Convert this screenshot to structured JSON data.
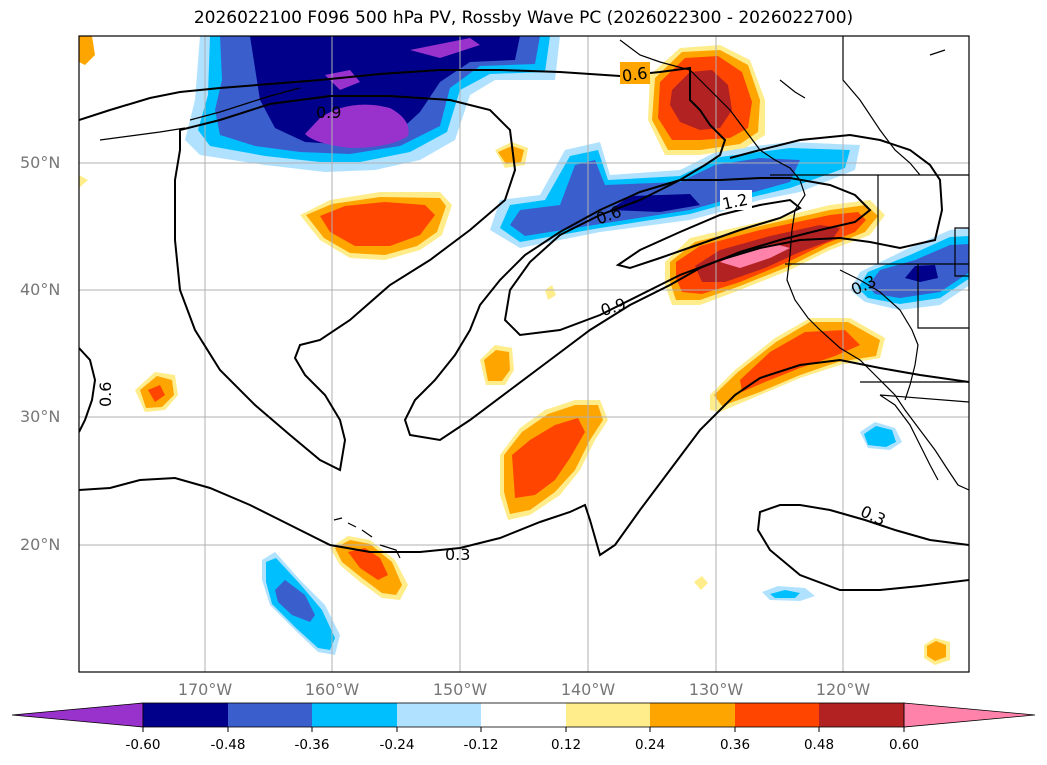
{
  "title": "2026022100 F096 500 hPa PV, Rossby Wave PC (2026022300 - 2026022700)",
  "lat_labels": [
    "50°N",
    "40°N",
    "30°N",
    "20°N"
  ],
  "lon_labels": [
    "170°W",
    "160°W",
    "150°W",
    "140°W",
    "130°W",
    "120°W"
  ],
  "contour_labels": [
    "0.6",
    "0.9",
    "1.2",
    "0.3",
    "0.6",
    "0.3",
    "0.3",
    "0.6",
    "0.9"
  ],
  "colorbar": {
    "ticks": [
      "-0.60",
      "-0.48",
      "-0.36",
      "-0.24",
      "-0.12",
      "0.12",
      "0.24",
      "0.36",
      "0.48",
      "0.60"
    ],
    "colors": [
      "#9932cc",
      "#00008b",
      "#3a5fcd",
      "#00bfff",
      "#b0e2ff",
      "#ffffff",
      "#ffec8b",
      "#ffa500",
      "#ff4500",
      "#b22222",
      "#ff82ab"
    ],
    "extend": "both"
  }
}
